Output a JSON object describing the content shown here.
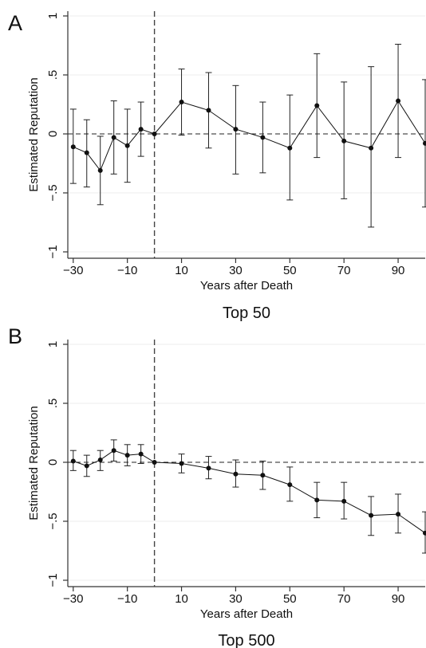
{
  "chart_data": [
    {
      "type": "line",
      "panel_label": "A",
      "caption": "Top 50",
      "xlabel": "Years after Death",
      "ylabel": "Estimated Reputation",
      "xlim": [
        -32,
        100
      ],
      "ylim": [
        -1,
        1
      ],
      "xticks": [
        -30,
        -10,
        10,
        30,
        50,
        70,
        90
      ],
      "xtick_labels": [
        "−30",
        "−10",
        "10",
        "30",
        "50",
        "70",
        "90"
      ],
      "yticks": [
        -1,
        -0.5,
        0,
        0.5,
        1
      ],
      "ytick_labels": [
        "−1",
        "−.5",
        "0",
        ".5",
        "1"
      ],
      "grid": "horizontal",
      "reference_lines": {
        "y": 0,
        "x": 0,
        "style": "dashed"
      },
      "series": [
        {
          "x": [
            -30,
            -25,
            -20,
            -15,
            -10,
            -5,
            0,
            10,
            20,
            30,
            40,
            50,
            60,
            70,
            80,
            90,
            100
          ],
          "y": [
            -0.11,
            -0.16,
            -0.31,
            -0.03,
            -0.1,
            0.04,
            0.0,
            0.27,
            0.2,
            0.04,
            -0.03,
            -0.12,
            0.24,
            -0.06,
            -0.12,
            0.28,
            -0.08
          ],
          "ci_low": [
            -0.42,
            -0.45,
            -0.6,
            -0.34,
            -0.41,
            -0.19,
            0.0,
            -0.01,
            -0.12,
            -0.34,
            -0.33,
            -0.56,
            -0.2,
            -0.55,
            -0.79,
            -0.2,
            -0.62
          ],
          "ci_high": [
            0.21,
            0.12,
            -0.02,
            0.28,
            0.21,
            0.27,
            0.0,
            0.55,
            0.52,
            0.41,
            0.27,
            0.33,
            0.68,
            0.44,
            0.57,
            0.76,
            0.46
          ]
        }
      ]
    },
    {
      "type": "line",
      "panel_label": "B",
      "caption": "Top 500",
      "xlabel": "Years after Death",
      "ylabel": "Estimated Reputation",
      "xlim": [
        -32,
        100
      ],
      "ylim": [
        -1,
        1
      ],
      "xticks": [
        -30,
        -10,
        10,
        30,
        50,
        70,
        90
      ],
      "xtick_labels": [
        "−30",
        "−10",
        "10",
        "30",
        "50",
        "70",
        "90"
      ],
      "yticks": [
        -1,
        -0.5,
        0,
        0.5,
        1
      ],
      "ytick_labels": [
        "−1",
        "−.5",
        "0",
        ".5",
        "1"
      ],
      "grid": "horizontal",
      "reference_lines": {
        "y": 0,
        "x": 0,
        "style": "dashed"
      },
      "series": [
        {
          "x": [
            -30,
            -25,
            -20,
            -15,
            -10,
            -5,
            0,
            10,
            20,
            30,
            40,
            50,
            60,
            70,
            80,
            90,
            100
          ],
          "y": [
            0.01,
            -0.03,
            0.02,
            0.1,
            0.06,
            0.07,
            0.0,
            -0.01,
            -0.05,
            -0.1,
            -0.11,
            -0.19,
            -0.32,
            -0.33,
            -0.45,
            -0.44,
            -0.6
          ],
          "ci_low": [
            -0.07,
            -0.12,
            -0.07,
            0.01,
            -0.03,
            -0.01,
            0.0,
            -0.09,
            -0.14,
            -0.21,
            -0.23,
            -0.33,
            -0.47,
            -0.48,
            -0.62,
            -0.6,
            -0.77
          ],
          "ci_high": [
            0.1,
            0.06,
            0.1,
            0.19,
            0.15,
            0.15,
            0.0,
            0.07,
            0.05,
            0.02,
            0.01,
            -0.04,
            -0.17,
            -0.17,
            -0.29,
            -0.27,
            -0.42
          ]
        }
      ]
    }
  ]
}
